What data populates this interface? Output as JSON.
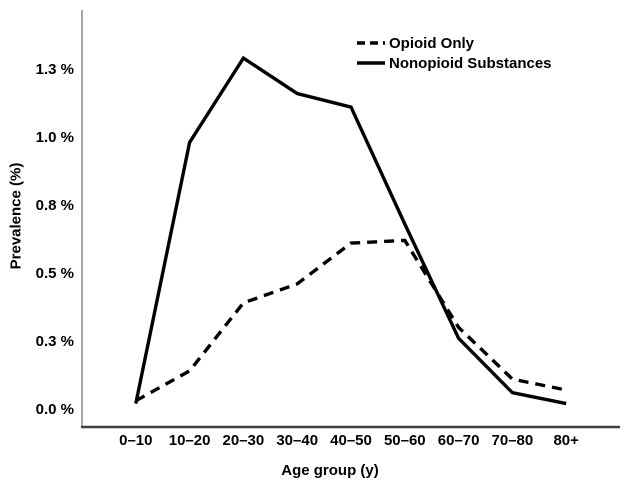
{
  "figure": {
    "background_color": "#ffffff",
    "line_color": "#000000",
    "x_axis_color": "#404040",
    "y_axis_color": "#a6a6a6"
  },
  "chart_data": {
    "type": "line",
    "title": "",
    "xlabel": "Age group (y)",
    "ylabel": "Prevalence (%)",
    "categories": [
      "0–10",
      "10–20",
      "20–30",
      "30–40",
      "40–50",
      "50–60",
      "60–70",
      "70–80",
      "80+"
    ],
    "series": [
      {
        "name": "Opioid Only",
        "style": "dashed",
        "color": "#000000",
        "values": [
          0.03,
          0.14,
          0.39,
          0.46,
          0.61,
          0.62,
          0.3,
          0.11,
          0.07
        ]
      },
      {
        "name": "Nonopioid Substances",
        "style": "solid",
        "color": "#000000",
        "values": [
          0.02,
          0.98,
          1.29,
          1.16,
          1.11,
          0.68,
          0.26,
          0.06,
          0.02
        ]
      }
    ],
    "y_ticks": {
      "values": [
        0,
        0.25,
        0.5,
        0.75,
        1.0,
        1.25
      ],
      "labels": [
        "0.0 %",
        "0.3 %",
        "0.5 %",
        "0.8 %",
        "1.0 %",
        "1.3 %"
      ]
    },
    "ylim": [
      0,
      1.47
    ],
    "grid": false,
    "legend_position": "upper-right-inside"
  }
}
